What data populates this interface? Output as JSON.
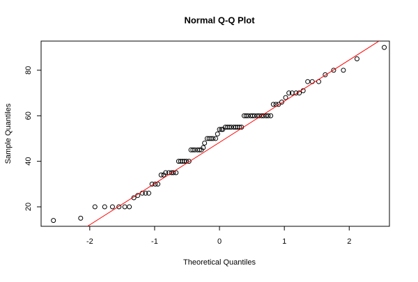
{
  "chart_data": {
    "type": "scatter",
    "title": "Normal Q-Q Plot",
    "x_label": "Theoretical Quantiles",
    "y_label": "Sample Quantiles",
    "series": [
      {
        "color": "#000000",
        "x": [
          -2.56,
          -2.14,
          -1.92,
          -1.77,
          -1.65,
          -1.55,
          -1.46,
          -1.39,
          -1.32,
          -1.26,
          -1.19,
          -1.14,
          -1.09,
          -1.04,
          -0.99,
          -0.95,
          -0.9,
          -0.86,
          -0.83,
          -0.78,
          -0.74,
          -0.71,
          -0.67,
          -0.63,
          -0.6,
          -0.57,
          -0.54,
          -0.51,
          -0.47,
          -0.44,
          -0.41,
          -0.38,
          -0.34,
          -0.31,
          -0.28,
          -0.25,
          -0.23,
          -0.19,
          -0.16,
          -0.13,
          -0.1,
          -0.06,
          -0.03,
          0.0,
          0.03,
          0.05,
          0.09,
          0.12,
          0.15,
          0.18,
          0.22,
          0.25,
          0.28,
          0.31,
          0.34,
          0.38,
          0.41,
          0.44,
          0.48,
          0.51,
          0.54,
          0.58,
          0.61,
          0.65,
          0.68,
          0.72,
          0.75,
          0.79,
          0.83,
          0.87,
          0.91,
          0.96,
          1.02,
          1.07,
          1.12,
          1.18,
          1.23,
          1.29,
          1.36,
          1.43,
          1.53,
          1.63,
          1.76,
          1.91,
          2.12,
          2.54
        ],
        "values": [
          14,
          15,
          20,
          20,
          20,
          20,
          20,
          20,
          24,
          25,
          26,
          26,
          26,
          30,
          30,
          30,
          34,
          34,
          35,
          35,
          35,
          35,
          35,
          40,
          40,
          40,
          40,
          40,
          40,
          45,
          45,
          45,
          45,
          45,
          45,
          46,
          48,
          50,
          50,
          50,
          50,
          50,
          52,
          54,
          54,
          54,
          55,
          55,
          55,
          55,
          55,
          55,
          55,
          55,
          55,
          60,
          60,
          60,
          60,
          60,
          60,
          60,
          60,
          60,
          60,
          60,
          60,
          60,
          65,
          65,
          65,
          66,
          68,
          70,
          70,
          70,
          70,
          71,
          75,
          75,
          75,
          78,
          80,
          80,
          85,
          90
        ]
      }
    ],
    "reference_line": {
      "intercept": 48.3,
      "slope": 18.1,
      "color": "#ff0000"
    },
    "xlim": [
      -2.75,
      2.62
    ],
    "ylim": [
      11.45,
      92.8
    ],
    "xticks": [
      -2,
      -1,
      0,
      1,
      2
    ],
    "yticks": [
      20,
      40,
      60,
      80
    ]
  }
}
